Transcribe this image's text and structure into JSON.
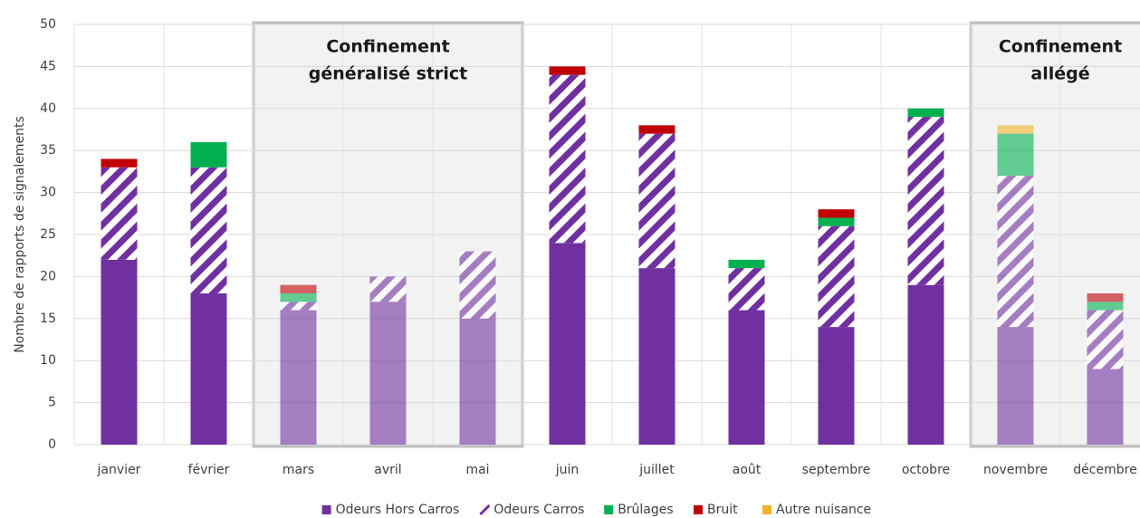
{
  "chart_data": {
    "type": "bar",
    "stacked": true,
    "ylabel": "Nombre de rapports de signalements",
    "categories": [
      "janvier",
      "février",
      "mars",
      "avril",
      "mai",
      "juin",
      "juillet",
      "août",
      "septembre",
      "octobre",
      "novembre",
      "décembre"
    ],
    "series": [
      {
        "name": "Odeurs Hors Carros",
        "color": "#7030a0",
        "pattern": "solid",
        "values": [
          22,
          18,
          16,
          17,
          15,
          24,
          21,
          16,
          14,
          19,
          14,
          9
        ]
      },
      {
        "name": "Odeurs Carros",
        "color": "#7030a0",
        "pattern": "hatch",
        "values": [
          11,
          15,
          1,
          3,
          8,
          20,
          16,
          5,
          12,
          20,
          18,
          7
        ]
      },
      {
        "name": "Brûlages",
        "color": "#00b050",
        "pattern": "solid",
        "values": [
          0,
          3,
          1,
          0,
          0,
          0,
          0,
          1,
          1,
          1,
          5,
          1
        ]
      },
      {
        "name": "Bruit",
        "color": "#c00000",
        "pattern": "solid",
        "values": [
          1,
          0,
          1,
          0,
          0,
          1,
          1,
          0,
          1,
          0,
          0,
          1
        ]
      },
      {
        "name": "Autre nuisance",
        "color": "#f0b429",
        "pattern": "solid",
        "values": [
          0,
          0,
          0,
          0,
          0,
          0,
          0,
          0,
          0,
          0,
          1,
          0
        ]
      }
    ],
    "ylim": [
      0,
      50
    ],
    "yticks": [
      0,
      5,
      10,
      15,
      20,
      25,
      30,
      35,
      40,
      45,
      50
    ],
    "grid": true,
    "legend": "bottom",
    "annotations": [
      {
        "lines": [
          "Confinement",
          "généralisé strict"
        ],
        "span": [
          "mars",
          "mai"
        ]
      },
      {
        "lines": [
          "Confinement",
          "allégé"
        ],
        "span": [
          "novembre",
          "décembre"
        ]
      }
    ]
  }
}
